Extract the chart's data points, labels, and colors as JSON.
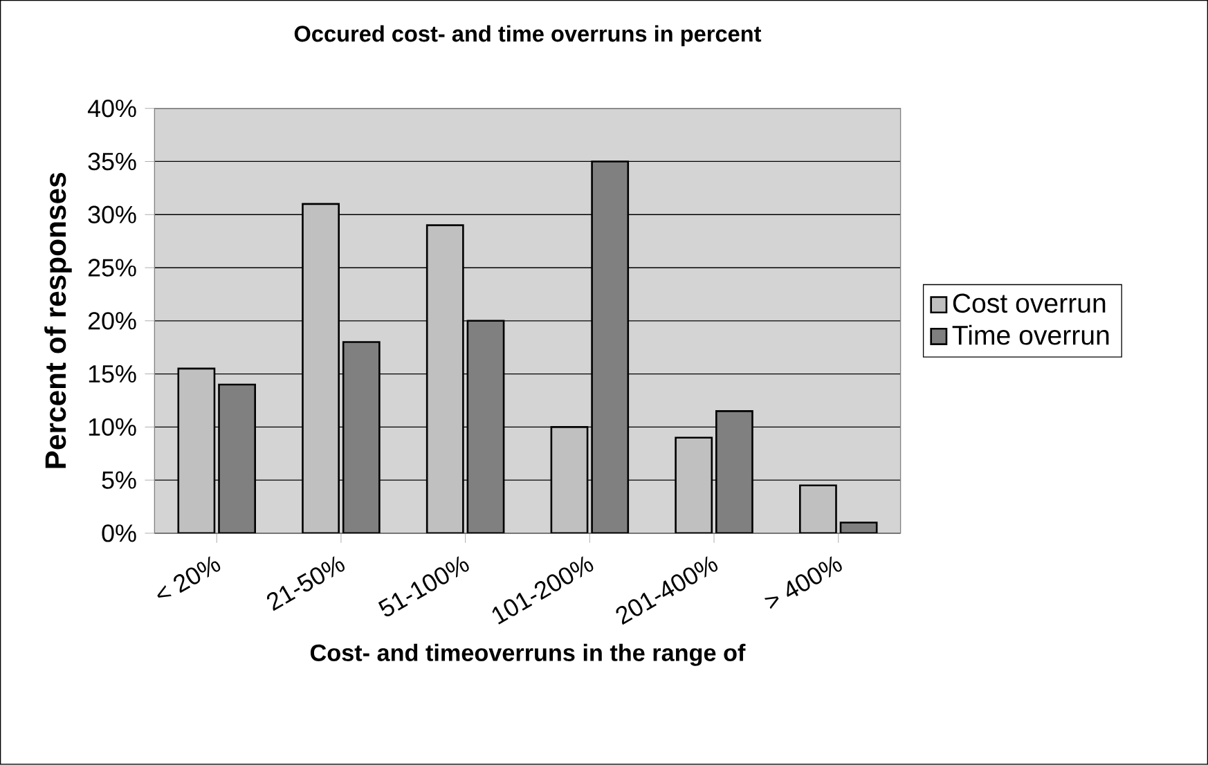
{
  "chart_data": {
    "type": "bar",
    "title": "Occured cost- and time overruns in percent",
    "xlabel": "Cost- and timeoverruns in the range of",
    "ylabel": "Percent of responses",
    "categories": [
      "< 20%",
      "21-50%",
      "51-100%",
      "101-200%",
      "201-400%",
      "> 400%"
    ],
    "series": [
      {
        "name": "Cost overrun",
        "color": "#c0c0c0",
        "values": [
          15.5,
          31,
          29,
          10,
          9,
          4.5
        ]
      },
      {
        "name": "Time overrun",
        "color": "#808080",
        "values": [
          14,
          18,
          20,
          35,
          11.5,
          1
        ]
      }
    ],
    "ylim": [
      0,
      40
    ],
    "yticks": [
      {
        "value": 0,
        "label": "0%"
      },
      {
        "value": 5,
        "label": "5%"
      },
      {
        "value": 10,
        "label": "10%"
      },
      {
        "value": 15,
        "label": "15%"
      },
      {
        "value": 20,
        "label": "20%"
      },
      {
        "value": 25,
        "label": "25%"
      },
      {
        "value": 30,
        "label": "30%"
      },
      {
        "value": 35,
        "label": "35%"
      },
      {
        "value": 40,
        "label": "40%"
      }
    ],
    "grid": "y",
    "legend": "right"
  }
}
